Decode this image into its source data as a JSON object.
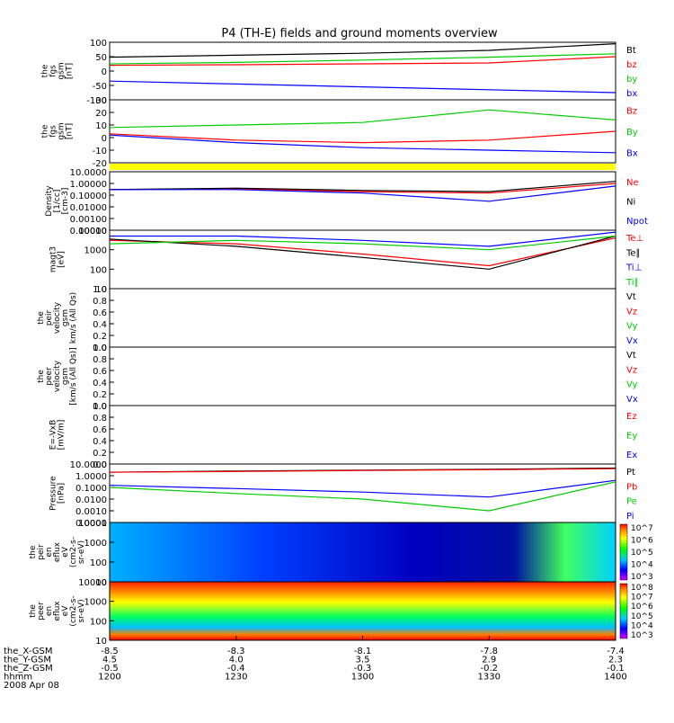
{
  "title": "P4 (TH-E) fields and ground moments overview",
  "colors": {
    "black": "#000000",
    "red": "#ff0000",
    "green": "#00cc00",
    "blue": "#0000ff",
    "yellow": "#ffff00"
  },
  "panels": [
    {
      "id": "fgs-gsm",
      "label": "the\nfgs\ngsm\n[nT]",
      "ticks": [
        "100",
        "50",
        "0",
        "-50",
        "-100"
      ],
      "legend": [
        {
          "text": "Bt",
          "color": "#000000"
        },
        {
          "text": "bz",
          "color": "#ff0000"
        },
        {
          "text": "by",
          "color": "#00cc00"
        },
        {
          "text": "bx",
          "color": "#0000ff"
        }
      ]
    },
    {
      "id": "fgs-gsm-dtrnd",
      "label": "the\nfgs\ngsm\n[nT]",
      "ticks": [
        "30",
        "20",
        "10",
        "0",
        "-10",
        "-20"
      ],
      "legend": [
        {
          "text": "Bz",
          "color": "#ff0000"
        },
        {
          "text": "By",
          "color": "#00cc00"
        },
        {
          "text": "Bx",
          "color": "#0000ff"
        }
      ]
    },
    {
      "id": "density",
      "label": "Density\n[1/cc]\n[cm-3]",
      "ticks": [
        "10.0000",
        "1.00000",
        "0.10000",
        "0.01000",
        "0.00100",
        "0.00010"
      ],
      "legend": [
        {
          "text": "Ne",
          "color": "#ff0000"
        },
        {
          "text": "Ni",
          "color": "#000000"
        },
        {
          "text": "Npot",
          "color": "#0000ff"
        }
      ]
    },
    {
      "id": "temperature",
      "label": "magt3\n[eV]",
      "ticks": [
        "10000",
        "1000",
        "100",
        "10"
      ],
      "legend": [
        {
          "text": "Te⊥",
          "color": "#ff0000"
        },
        {
          "text": "Te∥",
          "color": "#000000"
        },
        {
          "text": "Ti⊥",
          "color": "#0000ff"
        },
        {
          "text": "Ti∥",
          "color": "#00cc00"
        }
      ]
    },
    {
      "id": "peir-velocity",
      "label": "the\npeir\nvelocity\ngsm\nkm/s (All Qs)",
      "ticks": [
        "1.0",
        "0.8",
        "0.6",
        "0.4",
        "0.2",
        "0.0"
      ],
      "legend": [
        {
          "text": "Vt",
          "color": "#000000"
        },
        {
          "text": "Vz",
          "color": "#ff0000"
        },
        {
          "text": "Vy",
          "color": "#00cc00"
        },
        {
          "text": "Vx",
          "color": "#0000ff"
        }
      ]
    },
    {
      "id": "peer-velocity",
      "label": "the\npeer\nvelocity\ngsm\n[km/s (All Qs)]",
      "ticks": [
        "1.0",
        "0.8",
        "0.6",
        "0.4",
        "0.2",
        "0.0"
      ],
      "legend": [
        {
          "text": "Vt",
          "color": "#000000"
        },
        {
          "text": "Vz",
          "color": "#ff0000"
        },
        {
          "text": "Vy",
          "color": "#00cc00"
        },
        {
          "text": "Vx",
          "color": "#0000ff"
        }
      ]
    },
    {
      "id": "efield",
      "label": "E=-VxB\n[mV/m]",
      "ticks": [
        "1.0",
        "0.8",
        "0.6",
        "0.4",
        "0.2",
        "0.0"
      ],
      "legend": [
        {
          "text": "Ez",
          "color": "#ff0000"
        },
        {
          "text": "Ey",
          "color": "#00cc00"
        },
        {
          "text": "Ex",
          "color": "#0000ff"
        }
      ]
    },
    {
      "id": "pressure",
      "label": "Pressure\n[nPa]",
      "ticks": [
        "10.0000",
        "1.0000",
        "0.1000",
        "0.0100",
        "0.0010",
        "0.0001"
      ],
      "legend": [
        {
          "text": "Pt",
          "color": "#000000"
        },
        {
          "text": "Pb",
          "color": "#ff0000"
        },
        {
          "text": "Pe",
          "color": "#00cc00"
        },
        {
          "text": "Pi",
          "color": "#0000ff"
        }
      ]
    },
    {
      "id": "peir-spec",
      "label": "the\npeir\nen\neflux\neV\n(cm2-s-\nsr-eV)",
      "ticks": [
        "10000",
        "1000",
        "100",
        "10"
      ],
      "colorbar": [
        "10^7",
        "10^6",
        "10^5",
        "10^4",
        "10^3"
      ]
    },
    {
      "id": "peer-spec",
      "label": "the\npeer\nen\neflux\neV\n(cm2-s-\nsr-eV)",
      "ticks": [
        "10000",
        "1000",
        "100",
        "10"
      ],
      "colorbar": [
        "10^8",
        "10^7",
        "10^6",
        "10^5",
        "10^4",
        "10^3"
      ]
    }
  ],
  "chart_data": {
    "type": "line",
    "title": "P4 (TH-E) fields and ground moments overview",
    "xlabel": "hhmm",
    "date": "2008 Apr 08",
    "x_ticks": [
      "1200",
      "1230",
      "1300",
      "1330",
      "1400"
    ],
    "xlim": [
      "1200",
      "1400"
    ],
    "series": [
      {
        "name": "Bt",
        "panel": "fgs-gsm",
        "unit": "nT",
        "x": [
          "1200",
          "1230",
          "1300",
          "1330",
          "1400"
        ],
        "values": [
          48,
          55,
          62,
          72,
          95
        ]
      },
      {
        "name": "bz",
        "panel": "fgs-gsm",
        "unit": "nT",
        "x": [
          "1200",
          "1230",
          "1300",
          "1330",
          "1400"
        ],
        "values": [
          20,
          22,
          25,
          28,
          50
        ]
      },
      {
        "name": "by",
        "panel": "fgs-gsm",
        "unit": "nT",
        "x": [
          "1200",
          "1230",
          "1300",
          "1330",
          "1400"
        ],
        "values": [
          25,
          30,
          38,
          48,
          60
        ]
      },
      {
        "name": "bx",
        "panel": "fgs-gsm",
        "unit": "nT",
        "x": [
          "1200",
          "1230",
          "1300",
          "1330",
          "1400"
        ],
        "values": [
          -35,
          -45,
          -55,
          -65,
          -75
        ]
      },
      {
        "name": "Bz",
        "panel": "fgs-gsm-dtrnd",
        "unit": "nT",
        "x": [
          "1200",
          "1230",
          "1300",
          "1330",
          "1400"
        ],
        "values": [
          3,
          -2,
          -4,
          -2,
          5
        ]
      },
      {
        "name": "By",
        "panel": "fgs-gsm-dtrnd",
        "unit": "nT",
        "x": [
          "1200",
          "1230",
          "1300",
          "1330",
          "1400"
        ],
        "values": [
          8,
          10,
          12,
          22,
          14
        ]
      },
      {
        "name": "Bx",
        "panel": "fgs-gsm-dtrnd",
        "unit": "nT",
        "x": [
          "1200",
          "1230",
          "1300",
          "1330",
          "1400"
        ],
        "values": [
          2,
          -4,
          -8,
          -10,
          -12
        ]
      },
      {
        "name": "Ne",
        "panel": "density",
        "unit": "cm-3",
        "x": [
          "1200",
          "1230",
          "1300",
          "1330",
          "1400"
        ],
        "values": [
          0.3,
          0.35,
          0.2,
          0.15,
          1.0
        ]
      },
      {
        "name": "Ni",
        "panel": "density",
        "unit": "cm-3",
        "x": [
          "1200",
          "1230",
          "1300",
          "1330",
          "1400"
        ],
        "values": [
          0.3,
          0.4,
          0.25,
          0.2,
          1.5
        ]
      },
      {
        "name": "Npot",
        "panel": "density",
        "unit": "cm-3",
        "x": [
          "1200",
          "1230",
          "1300",
          "1330",
          "1400"
        ],
        "values": [
          0.3,
          0.3,
          0.15,
          0.03,
          0.6
        ]
      },
      {
        "name": "Te⊥",
        "panel": "temperature",
        "unit": "eV",
        "x": [
          "1200",
          "1230",
          "1300",
          "1330",
          "1400"
        ],
        "values": [
          3000,
          2000,
          600,
          150,
          4000
        ]
      },
      {
        "name": "Te∥",
        "panel": "temperature",
        "unit": "eV",
        "x": [
          "1200",
          "1230",
          "1300",
          "1330",
          "1400"
        ],
        "values": [
          3500,
          1500,
          400,
          100,
          5000
        ]
      },
      {
        "name": "Ti⊥",
        "panel": "temperature",
        "unit": "eV",
        "x": [
          "1200",
          "1230",
          "1300",
          "1330",
          "1400"
        ],
        "values": [
          5000,
          5000,
          3000,
          1500,
          8000
        ]
      },
      {
        "name": "Ti∥",
        "panel": "temperature",
        "unit": "eV",
        "x": [
          "1200",
          "1230",
          "1300",
          "1330",
          "1400"
        ],
        "values": [
          2000,
          3000,
          2000,
          1000,
          5000
        ]
      },
      {
        "name": "Pt",
        "panel": "pressure",
        "unit": "nPa",
        "x": [
          "1200",
          "1230",
          "1300",
          "1330",
          "1400"
        ],
        "values": [
          2.0,
          2.5,
          3.0,
          3.5,
          4.5
        ]
      },
      {
        "name": "Pb",
        "panel": "pressure",
        "unit": "nPa",
        "x": [
          "1200",
          "1230",
          "1300",
          "1330",
          "1400"
        ],
        "values": [
          2.0,
          2.3,
          2.8,
          3.3,
          4.0
        ]
      },
      {
        "name": "Pe",
        "panel": "pressure",
        "unit": "nPa",
        "x": [
          "1200",
          "1230",
          "1300",
          "1330",
          "1400"
        ],
        "values": [
          0.1,
          0.03,
          0.01,
          0.001,
          0.3
        ]
      },
      {
        "name": "Pi",
        "panel": "pressure",
        "unit": "nPa",
        "x": [
          "1200",
          "1230",
          "1300",
          "1330",
          "1400"
        ],
        "values": [
          0.15,
          0.08,
          0.04,
          0.015,
          0.4
        ]
      }
    ],
    "orbit_rows": [
      {
        "label": "the_X-GSM",
        "values": [
          "-8.5",
          "-8.3",
          "-8.1",
          "-7.8",
          "-7.4"
        ]
      },
      {
        "label": "the_Y-GSM",
        "values": [
          "4.5",
          "4.0",
          "3.5",
          "2.9",
          "2.3"
        ]
      },
      {
        "label": "the_Z-GSM",
        "values": [
          "-0.5",
          "-0.4",
          "-0.3",
          "-0.2",
          "-0.1"
        ]
      },
      {
        "label": "hhmm",
        "values": [
          "1200",
          "1230",
          "1300",
          "1330",
          "1400"
        ]
      }
    ]
  }
}
